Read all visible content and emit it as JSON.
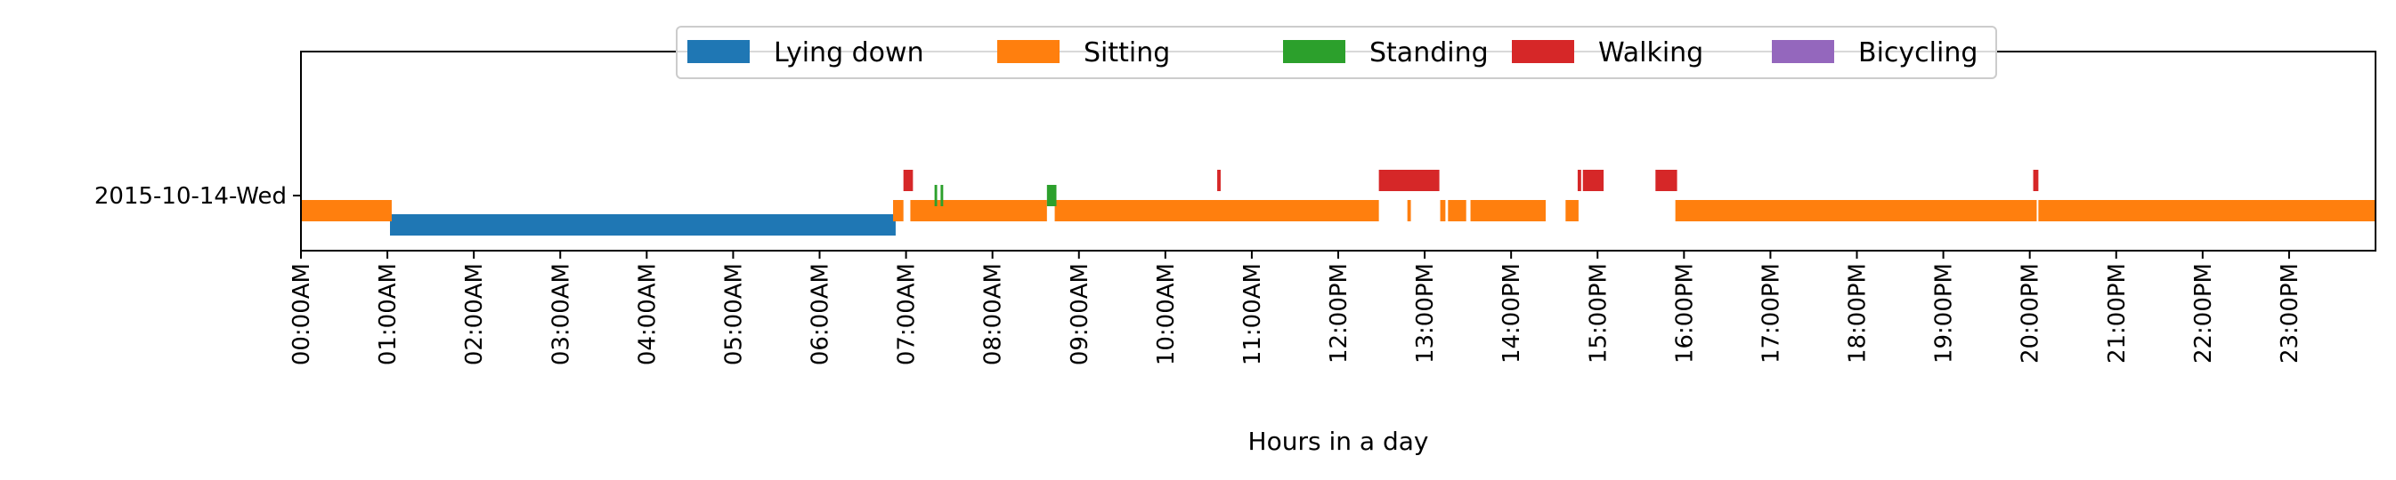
{
  "chart_data": {
    "type": "bar",
    "orientation": "horizontal-timeline",
    "xlabel": "Hours in a day",
    "ylabel": "",
    "xlim": [
      0,
      24
    ],
    "grid": false,
    "legend_placement": "top-center",
    "categories": [
      "2015-10-14-Wed"
    ],
    "x_tick_labels": [
      "00:00AM",
      "01:00AM",
      "02:00AM",
      "03:00AM",
      "04:00AM",
      "05:00AM",
      "06:00AM",
      "07:00AM",
      "08:00AM",
      "09:00AM",
      "10:00AM",
      "11:00AM",
      "12:00PM",
      "13:00PM",
      "14:00PM",
      "15:00PM",
      "16:00PM",
      "17:00PM",
      "18:00PM",
      "19:00PM",
      "20:00PM",
      "21:00PM",
      "22:00PM",
      "23:00PM"
    ],
    "series": [
      {
        "name": "Lying down",
        "color": "#1f77b4",
        "segments": [
          [
            1.03,
            6.88
          ]
        ]
      },
      {
        "name": "Sitting",
        "color": "#ff7f0e",
        "segments": [
          [
            0.0,
            1.05
          ],
          [
            6.85,
            6.97
          ],
          [
            7.05,
            8.63
          ],
          [
            8.72,
            12.47
          ],
          [
            12.8,
            12.84
          ],
          [
            13.18,
            13.24
          ],
          [
            13.27,
            13.48
          ],
          [
            13.53,
            14.4
          ],
          [
            14.63,
            14.78
          ],
          [
            15.9,
            20.08
          ],
          [
            20.1,
            24.0
          ]
        ]
      },
      {
        "name": "Standing",
        "color": "#2ca02c",
        "segments": [
          [
            7.33,
            7.36
          ],
          [
            7.4,
            7.43
          ],
          [
            8.63,
            8.74
          ]
        ]
      },
      {
        "name": "Walking",
        "color": "#d62728",
        "segments": [
          [
            6.97,
            7.08
          ],
          [
            10.6,
            10.64
          ],
          [
            12.47,
            13.17
          ],
          [
            14.77,
            14.81
          ],
          [
            14.83,
            15.07
          ],
          [
            15.67,
            15.92
          ],
          [
            20.04,
            20.1
          ]
        ]
      },
      {
        "name": "Bicycling",
        "color": "#9467bd",
        "segments": []
      }
    ]
  }
}
